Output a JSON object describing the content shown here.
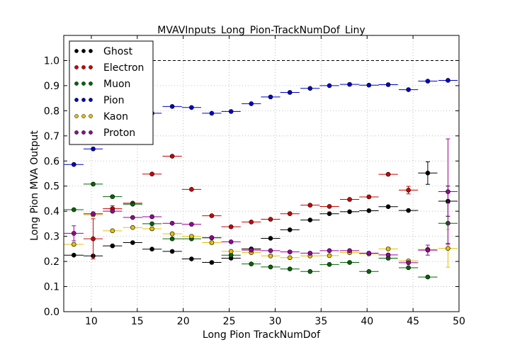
{
  "chart_data": {
    "type": "scatter",
    "title": "MVAVInputs_Long_Pion-TrackNumDof_Liny",
    "xlabel": "Long Pion TrackNumDof",
    "ylabel": "Long Pion MVA Output",
    "xlim": [
      7,
      50
    ],
    "ylim": [
      0.0,
      1.1
    ],
    "xticks": [
      10,
      15,
      20,
      25,
      30,
      35,
      40,
      45,
      50
    ],
    "yticks": [
      0.0,
      0.1,
      0.2,
      0.3,
      0.4,
      0.5,
      0.6,
      0.7,
      0.8,
      0.9,
      1.0
    ],
    "xtick_labels": [
      "10",
      "15",
      "20",
      "25",
      "30",
      "35",
      "40",
      "45",
      "50"
    ],
    "ytick_labels": [
      "0.0",
      "0.1",
      "0.2",
      "0.3",
      "0.4",
      "0.5",
      "0.6",
      "0.7",
      "0.8",
      "0.9",
      "1.0"
    ],
    "grid": true,
    "reference_line": 1.0,
    "legend_position": "top-left",
    "x_bin_half_width": 1.05,
    "x": [
      8.1,
      10.2,
      12.3,
      14.5,
      16.6,
      18.8,
      20.9,
      23.1,
      25.2,
      27.4,
      29.5,
      31.6,
      33.8,
      35.9,
      38.1,
      40.2,
      42.3,
      44.5,
      46.6,
      48.8
    ],
    "series": [
      {
        "name": "Ghost",
        "color": "#000000",
        "values": [
          0.225,
          0.222,
          0.262,
          0.275,
          0.249,
          0.24,
          0.21,
          0.196,
          0.213,
          0.25,
          0.292,
          0.326,
          0.365,
          0.39,
          0.398,
          0.402,
          0.418,
          0.403,
          0.552,
          0.44
        ],
        "yerr": [
          0.004,
          0.005,
          0.004,
          0.004,
          0.004,
          0.004,
          0.004,
          0.004,
          0.004,
          0.004,
          0.004,
          0.005,
          0.005,
          0.005,
          0.005,
          0.006,
          0.007,
          0.008,
          0.045,
          0.06
        ]
      },
      {
        "name": "Electron",
        "color": "#cc0000",
        "values": [
          null,
          0.29,
          0.41,
          0.432,
          0.548,
          0.619,
          0.487,
          0.382,
          0.338,
          0.357,
          0.368,
          0.39,
          0.424,
          0.419,
          0.447,
          0.457,
          0.547,
          0.484,
          null,
          null
        ],
        "yerr": [
          null,
          0.08,
          0.012,
          0.008,
          0.006,
          0.006,
          0.006,
          0.006,
          0.006,
          0.006,
          0.006,
          0.006,
          0.006,
          0.006,
          0.007,
          0.008,
          0.008,
          0.015,
          null,
          null
        ]
      },
      {
        "name": "Muon",
        "color": "#006600",
        "values": [
          0.406,
          0.508,
          0.458,
          0.428,
          0.35,
          0.29,
          0.29,
          0.294,
          0.225,
          0.19,
          0.178,
          0.17,
          0.16,
          0.188,
          0.196,
          0.16,
          0.213,
          0.175,
          0.138,
          0.352
        ],
        "yerr": [
          0.005,
          0.008,
          0.006,
          0.006,
          0.005,
          0.005,
          0.005,
          0.005,
          0.005,
          0.005,
          0.005,
          0.005,
          0.005,
          0.005,
          0.005,
          0.005,
          0.006,
          0.007,
          0.006,
          0.08
        ]
      },
      {
        "name": "Pion",
        "color": "#0000cc",
        "values": [
          0.586,
          0.648,
          0.75,
          0.785,
          0.79,
          0.817,
          0.813,
          0.79,
          0.797,
          0.828,
          0.855,
          0.873,
          0.889,
          0.9,
          0.905,
          0.902,
          0.904,
          0.884,
          0.918,
          0.921
        ],
        "yerr": [
          0.003,
          0.003,
          0.003,
          0.003,
          0.003,
          0.003,
          0.003,
          0.003,
          0.003,
          0.003,
          0.003,
          0.003,
          0.003,
          0.003,
          0.003,
          0.003,
          0.003,
          0.003,
          0.003,
          0.004
        ]
      },
      {
        "name": "Kaon",
        "color": "#e6c000",
        "values": [
          0.268,
          0.386,
          0.322,
          0.335,
          0.33,
          0.31,
          0.3,
          0.275,
          0.24,
          0.235,
          0.222,
          0.215,
          0.222,
          0.223,
          0.235,
          0.23,
          0.25,
          0.202,
          0.248,
          0.252
        ],
        "yerr": [
          0.004,
          0.004,
          0.004,
          0.004,
          0.004,
          0.004,
          0.004,
          0.004,
          0.004,
          0.004,
          0.004,
          0.004,
          0.004,
          0.004,
          0.004,
          0.004,
          0.005,
          0.006,
          0.006,
          0.075
        ]
      },
      {
        "name": "Proton",
        "color": "#990099",
        "values": [
          0.312,
          0.39,
          0.4,
          0.375,
          0.378,
          0.352,
          0.348,
          0.295,
          0.278,
          0.245,
          0.243,
          0.238,
          0.233,
          0.243,
          0.243,
          0.233,
          0.226,
          0.195,
          0.245,
          0.478
        ],
        "yerr": [
          0.03,
          0.006,
          0.005,
          0.005,
          0.005,
          0.005,
          0.005,
          0.005,
          0.005,
          0.005,
          0.005,
          0.005,
          0.005,
          0.005,
          0.005,
          0.005,
          0.006,
          0.008,
          0.02,
          0.21
        ]
      }
    ]
  }
}
